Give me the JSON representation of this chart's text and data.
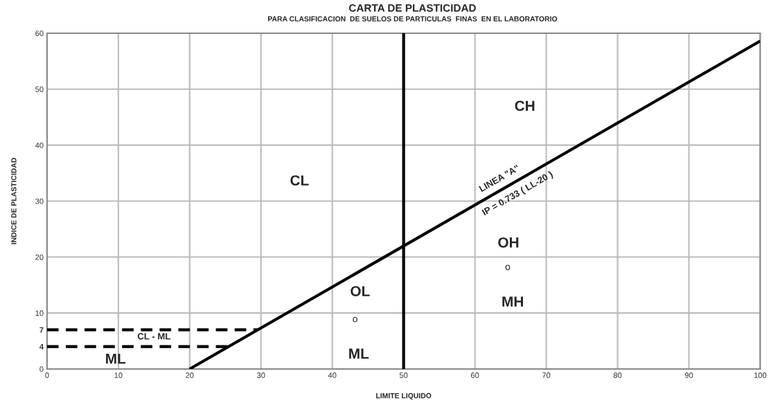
{
  "chart_data": {
    "type": "line",
    "title": "CARTA DE PLASTICIDAD",
    "subtitle": "PARA CLASIFICACION  DE SUELOS DE PARTICULAS  FINAS  EN EL LABORATORIO",
    "xlabel": "LIMITE LIQUIDO",
    "ylabel": "INDICE DE PLASTICIDAD",
    "series": [
      {
        "name": "LINEA \"A\"",
        "color": "#000000",
        "x": [
          20,
          100
        ],
        "values": [
          0,
          58.6
        ],
        "line_style": "solid"
      },
      {
        "color": "#000000",
        "x": [
          0,
          29.55
        ],
        "values": [
          7,
          7
        ],
        "line_style": "dashed"
      },
      {
        "color": "#000000",
        "x": [
          0,
          25.46
        ],
        "values": [
          4,
          4
        ],
        "line_style": "dashed"
      }
    ],
    "ref_lines": [
      {
        "axis": "x",
        "value": 50,
        "color": "#000000",
        "line_style": "solid"
      }
    ],
    "annotations": [
      {
        "text": "IP = 0.733 ( LL-20 )",
        "x": 66,
        "y": 33.7
      },
      "CL",
      "CH",
      "OH",
      "o",
      "MH",
      "OL",
      "o",
      "ML",
      "CL - ML",
      "ML"
    ],
    "xlim": [
      0,
      100
    ],
    "xticks": [
      0,
      10,
      20,
      30,
      40,
      50,
      60,
      70,
      80,
      90,
      100
    ],
    "ylim": [
      0,
      60
    ],
    "yticks": [
      0,
      {
        "value": 4,
        "label": "4"
      },
      {
        "value": 7,
        "label": "7"
      },
      10,
      20,
      30,
      40,
      50,
      60
    ],
    "grid": true,
    "legend": false,
    "marker": "none"
  }
}
